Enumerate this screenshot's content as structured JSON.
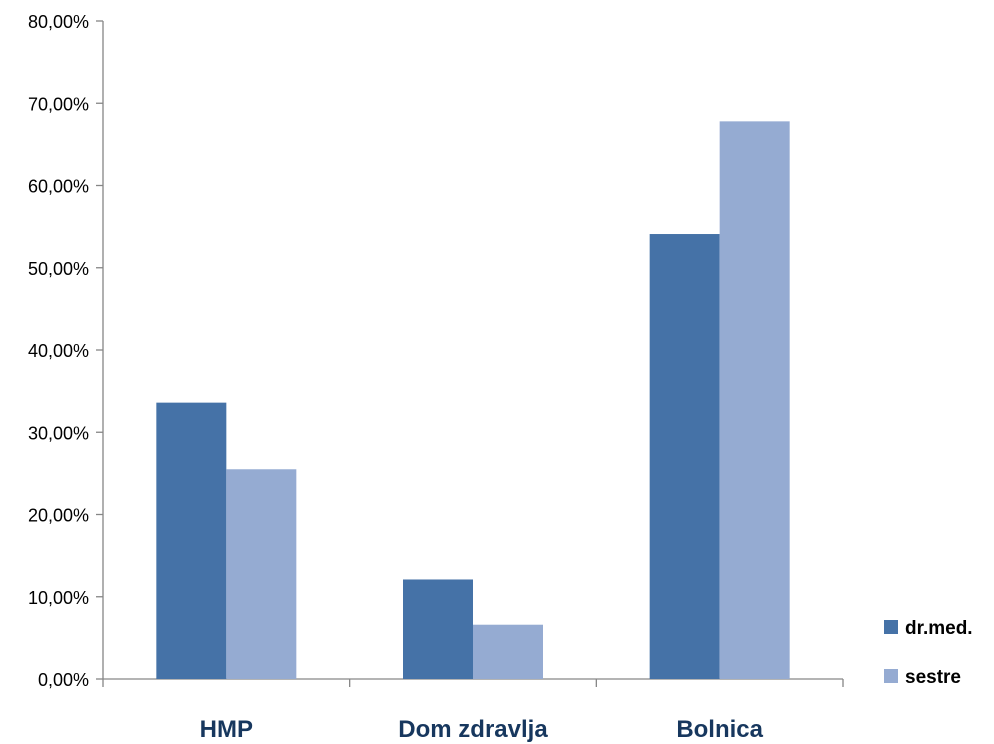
{
  "chart_data": {
    "type": "bar",
    "categories": [
      "HMP",
      "Dom zdravlja",
      "Bolnica"
    ],
    "series": [
      {
        "name": "dr.med.",
        "values": [
          33.6,
          12.1,
          54.1
        ],
        "color": "#4572a7"
      },
      {
        "name": "sestre",
        "values": [
          25.5,
          6.6,
          67.8
        ],
        "color": "#95abd2"
      }
    ],
    "y_ticks": [
      0,
      10,
      20,
      30,
      40,
      50,
      60,
      70,
      80
    ],
    "y_tick_labels": [
      "0,00%",
      "10,00%",
      "20,00%",
      "30,00%",
      "40,00%",
      "50,00%",
      "60,00%",
      "70,00%",
      "80,00%"
    ],
    "ylim": [
      0,
      80
    ],
    "title": "",
    "xlabel": "",
    "ylabel": "",
    "grid": false,
    "legend_position": "bottom-right",
    "category_label_color": "#17375e",
    "axis_color": "#868686"
  }
}
